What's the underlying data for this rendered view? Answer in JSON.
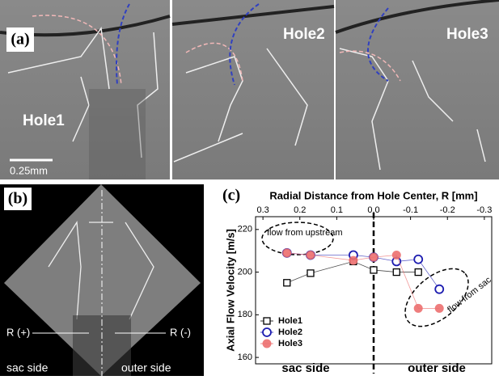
{
  "figure": {
    "panel_a": {
      "label": "(a)",
      "holes": [
        "Hole1",
        "Hole2",
        "Hole3"
      ],
      "scale_bar": "0.25mm"
    },
    "panel_b": {
      "label": "(b)",
      "r_plus": "R (+)",
      "r_minus": "R (-)",
      "left_side": "sac side",
      "right_side": "outer side"
    },
    "panel_c": {
      "label": "(c)",
      "annotations": [
        "flow from upstream",
        "flow from sac"
      ],
      "bottom_labels": [
        "sac side",
        "outer side"
      ]
    }
  },
  "chart_data": {
    "type": "line",
    "x_title": "Radial Distance from Hole Center, R [mm]",
    "y_title": "Axial Flow Velocity [m/s]",
    "xlim": [
      0.32,
      -0.32
    ],
    "xticks": [
      0.3,
      0.2,
      0.1,
      {
        "value": 0,
        "label": "0.0"
      },
      -0.1,
      -0.2,
      -0.3
    ],
    "ylim": [
      157,
      226
    ],
    "yticks": [
      160,
      180,
      200,
      220
    ],
    "vline": 0,
    "legend": "lower-left",
    "series": [
      {
        "name": "Hole1",
        "color": "#000000",
        "marker": "square",
        "x": [
          0.235,
          0.171,
          0.055,
          0,
          -0.062,
          -0.121
        ],
        "values": [
          195,
          199.5,
          205,
          201,
          200,
          200
        ]
      },
      {
        "name": "Hole2",
        "color": "#1c1cb0",
        "marker": "circle",
        "x": [
          0.235,
          0.171,
          0.055,
          0,
          -0.062,
          -0.121,
          -0.178
        ],
        "values": [
          209,
          208,
          208,
          207,
          205,
          206,
          192
        ]
      },
      {
        "name": "Hole3",
        "color": "#ec6f6f",
        "marker": "filled",
        "x": [
          0.235,
          0.171,
          0.055,
          0,
          -0.062,
          -0.121,
          -0.178
        ],
        "values": [
          209,
          208,
          205.5,
          207,
          208,
          183,
          183
        ]
      }
    ]
  }
}
